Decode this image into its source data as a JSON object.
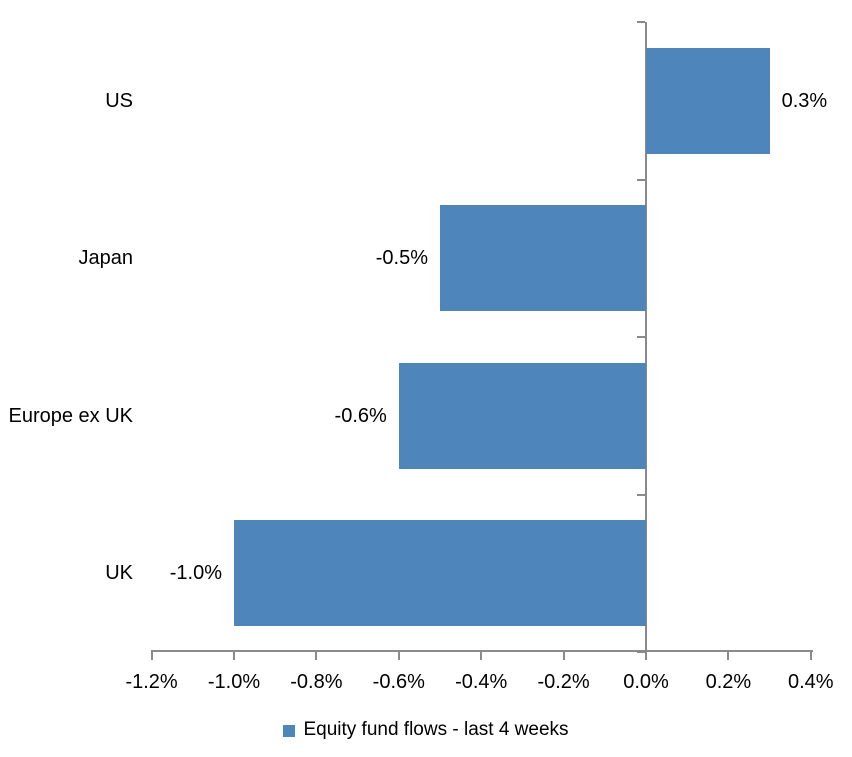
{
  "chart_data": {
    "type": "bar",
    "orientation": "horizontal",
    "categories": [
      "US",
      "Japan",
      "Europe ex UK",
      "UK"
    ],
    "values": [
      0.3,
      -0.5,
      -0.6,
      -1.0
    ],
    "point_labels": [
      "0.3%",
      "-0.5%",
      "-0.6%",
      "-1.0%"
    ],
    "series": [
      {
        "name": "Equity fund flows - last 4 weeks",
        "values": [
          0.3,
          -0.5,
          -0.6,
          -1.0
        ]
      }
    ],
    "title": "",
    "xlabel": "",
    "ylabel": "",
    "xlim": [
      -1.2,
      0.4
    ],
    "x_tick_values": [
      -1.2,
      -1.0,
      -0.8,
      -0.6,
      -0.4,
      -0.2,
      0.0,
      0.2,
      0.4
    ],
    "x_tick_labels": [
      "-1.2%",
      "-1.0%",
      "-0.8%",
      "-0.6%",
      "-0.4%",
      "-0.2%",
      "0.0%",
      "0.2%",
      "0.4%"
    ],
    "grid": false,
    "legend_position": "bottom",
    "data_labels": "outside-end",
    "colors": {
      "bar": "#4e86bc",
      "axis": "#8a8a8a",
      "text": "#000000",
      "background": "#ffffff"
    }
  },
  "legend": {
    "marker": "legend-square",
    "label": "Equity fund flows - last 4 weeks"
  }
}
